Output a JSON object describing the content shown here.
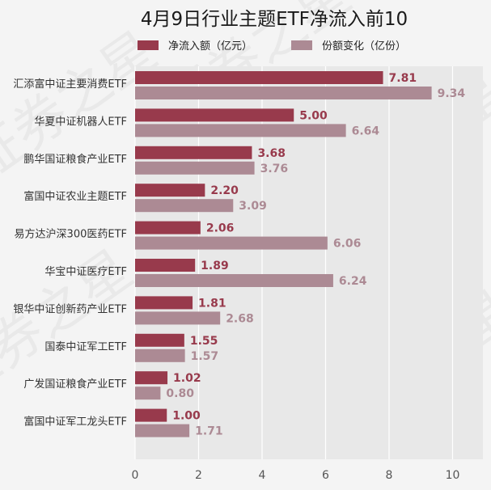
{
  "chart_data": {
    "type": "bar",
    "orientation": "horizontal",
    "title": "4月9日行业主题ETF净流入前10",
    "xlabel": "",
    "ylabel": "",
    "xlim": [
      0,
      11
    ],
    "xticks": [
      0,
      2,
      4,
      6,
      8,
      10
    ],
    "grid": true,
    "legend_position": "top",
    "categories": [
      "汇添富中证主要消费ETF",
      "华夏中证机器人ETF",
      "鹏华国证粮食产业ETF",
      "富国中证农业主题ETF",
      "易方达沪深300医药ETF",
      "华宝中证医疗ETF",
      "银华中证创新药产业ETF",
      "国泰中证军工ETF",
      "广发国证粮食产业ETF",
      "富国中证军工龙头ETF"
    ],
    "series": [
      {
        "name": "净流入额（亿元）",
        "color": "#983a4c",
        "values": [
          7.81,
          5.0,
          3.68,
          2.2,
          2.06,
          1.89,
          1.81,
          1.55,
          1.02,
          1.0
        ]
      },
      {
        "name": "份额变化（亿份）",
        "color": "#ac8a94",
        "values": [
          9.34,
          6.64,
          3.76,
          3.09,
          6.06,
          6.24,
          2.68,
          1.57,
          0.8,
          1.71
        ]
      }
    ]
  },
  "watermark": "证券之星"
}
